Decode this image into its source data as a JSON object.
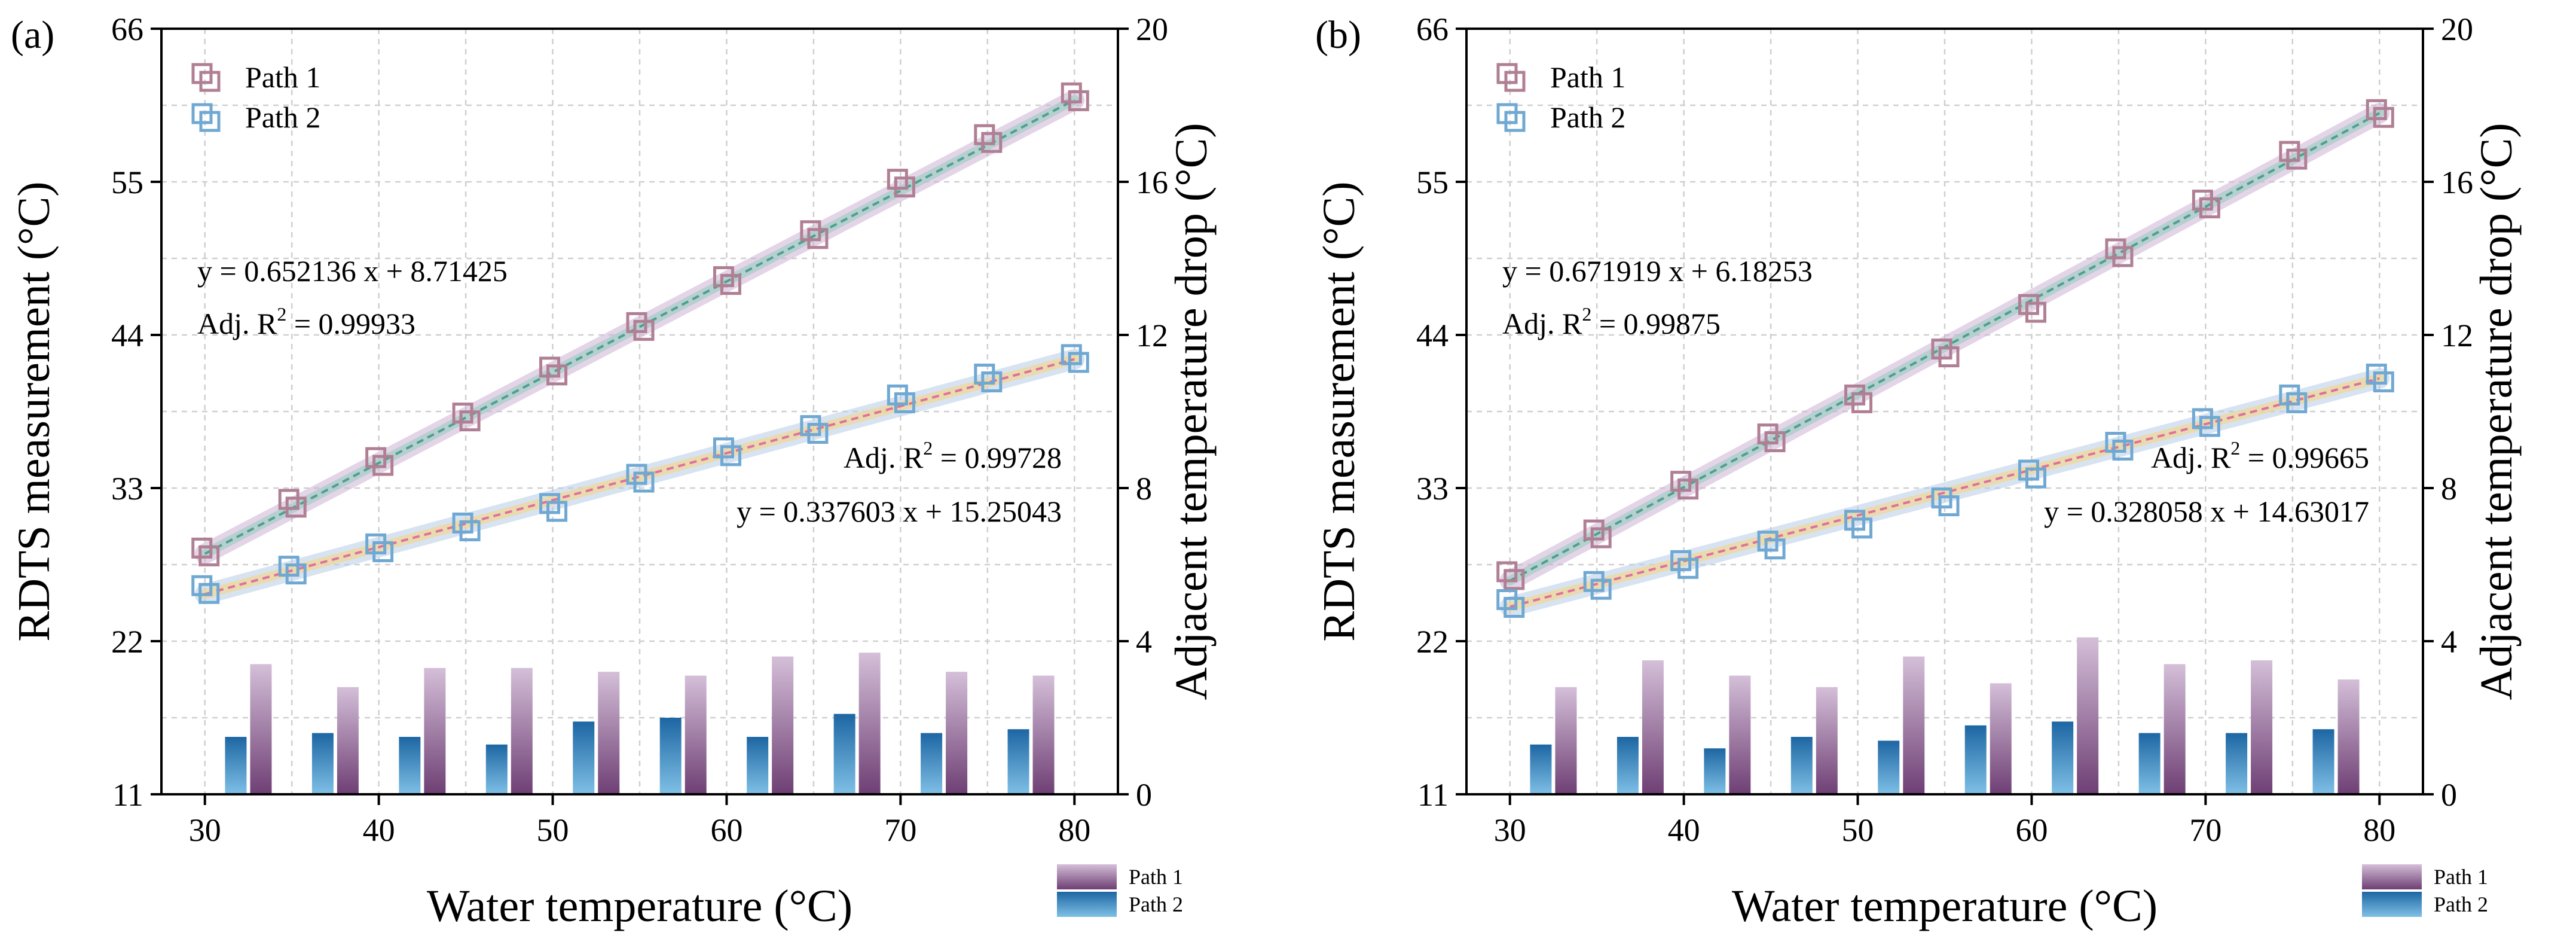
{
  "colors": {
    "path1_marker": "#b07f94",
    "path2_marker": "#6fa8d2",
    "path1_band": "#cdb3d4",
    "path2_band": "#b7cde6",
    "fit1_line": "#4f9e94",
    "fit2_line": "#e0709c",
    "fit1_band": "#a8cdc8",
    "fit2_band": "#f1d79a",
    "bar1_top": "#d4bfd8",
    "bar1_bottom": "#6e3f74",
    "bar2_top": "#7fc0e6",
    "bar2_bottom": "#1d66a3"
  },
  "chart_data": [
    {
      "panel_label": "(a)",
      "type": "scatter+bar",
      "xlabel": "Water temperature (°C)",
      "ylabel": "RDTS measurement (°C)",
      "ylabel_right": "Adjacent temperature drop (°C)",
      "xlim": [
        27.5,
        82.5
      ],
      "ylim": [
        11,
        66
      ],
      "ylim_right": [
        0,
        20
      ],
      "xticks": [
        30,
        40,
        50,
        60,
        70,
        80
      ],
      "yticks": [
        11,
        22,
        33,
        44,
        55,
        66
      ],
      "yticks_right": [
        0,
        4,
        8,
        12,
        16,
        20
      ],
      "x": [
        30,
        35,
        40,
        45,
        50,
        55,
        60,
        65,
        70,
        75,
        80
      ],
      "series": [
        {
          "name": "Path 1",
          "values": [
            28.3,
            31.8,
            34.8,
            38.0,
            41.3,
            44.5,
            47.8,
            51.1,
            54.8,
            58.0,
            61.0
          ]
        },
        {
          "name": "Path 2",
          "values": [
            25.6,
            27.0,
            28.6,
            30.1,
            31.5,
            33.6,
            35.5,
            37.1,
            39.3,
            40.8,
            42.2
          ]
        }
      ],
      "fits": [
        {
          "series": "Path 1",
          "slope": 0.652136,
          "intercept": 8.71425,
          "equation": "y = 0.652136 x + 8.71425",
          "r2_label": "Adj. R",
          "r2_value": " = 0.99933"
        },
        {
          "series": "Path 2",
          "slope": 0.337603,
          "intercept": 15.25043,
          "equation": "y = 0.337603 x + 15.25043",
          "r2_label": "Adj. R",
          "r2_value": " = 0.99728"
        }
      ],
      "bars": {
        "x": [
          32.5,
          37.5,
          42.5,
          47.5,
          52.5,
          57.5,
          62.5,
          67.5,
          72.5,
          77.5
        ],
        "series": [
          {
            "name": "Path 1",
            "values": [
              3.4,
              2.8,
              3.3,
              3.3,
              3.2,
              3.1,
              3.6,
              3.7,
              3.2,
              3.1
            ]
          },
          {
            "name": "Path 2",
            "values": [
              1.5,
              1.6,
              1.5,
              1.3,
              1.9,
              2.0,
              1.5,
              2.1,
              1.6,
              1.7
            ]
          }
        ]
      },
      "legend": [
        "Path 1",
        "Path 2"
      ],
      "bar_legend": [
        "Path 1",
        "Path 2"
      ]
    },
    {
      "panel_label": "(b)",
      "type": "scatter+bar",
      "xlabel": "Water temperature (°C)",
      "ylabel": "RDTS measurement (°C)",
      "ylabel_right": "Adjacent temperature drop (°C)",
      "xlim": [
        27.5,
        82.5
      ],
      "ylim": [
        11,
        66
      ],
      "ylim_right": [
        0,
        20
      ],
      "xticks": [
        30,
        40,
        50,
        60,
        70,
        80
      ],
      "yticks": [
        11,
        22,
        33,
        44,
        55,
        66
      ],
      "yticks_right": [
        0,
        4,
        8,
        12,
        16,
        20
      ],
      "x": [
        30,
        35,
        40,
        45,
        50,
        55,
        60,
        65,
        70,
        75,
        80
      ],
      "series": [
        {
          "name": "Path 1",
          "values": [
            26.6,
            29.6,
            33.1,
            36.5,
            39.3,
            42.6,
            45.8,
            49.8,
            53.3,
            56.8,
            59.8
          ]
        },
        {
          "name": "Path 2",
          "values": [
            24.6,
            25.9,
            27.4,
            28.8,
            30.3,
            31.9,
            33.9,
            35.9,
            37.6,
            39.3,
            40.8
          ]
        }
      ],
      "fits": [
        {
          "series": "Path 1",
          "slope": 0.671919,
          "intercept": 6.18253,
          "equation": "y = 0.671919 x + 6.18253",
          "r2_label": "Adj. R",
          "r2_value": " = 0.99875"
        },
        {
          "series": "Path 2",
          "slope": 0.328058,
          "intercept": 14.63017,
          "equation": "y = 0.328058 x + 14.63017",
          "r2_label": "Adj. R",
          "r2_value": " = 0.99665"
        }
      ],
      "bars": {
        "x": [
          32.5,
          37.5,
          42.5,
          47.5,
          52.5,
          57.5,
          62.5,
          67.5,
          72.5,
          77.5
        ],
        "series": [
          {
            "name": "Path 1",
            "values": [
              2.8,
              3.5,
              3.1,
              2.8,
              3.6,
              2.9,
              4.1,
              3.4,
              3.5,
              3.0
            ]
          },
          {
            "name": "Path 2",
            "values": [
              1.3,
              1.5,
              1.2,
              1.5,
              1.4,
              1.8,
              1.9,
              1.6,
              1.6,
              1.7
            ]
          }
        ]
      },
      "legend": [
        "Path 1",
        "Path 2"
      ],
      "bar_legend": [
        "Path 1",
        "Path 2"
      ]
    }
  ]
}
